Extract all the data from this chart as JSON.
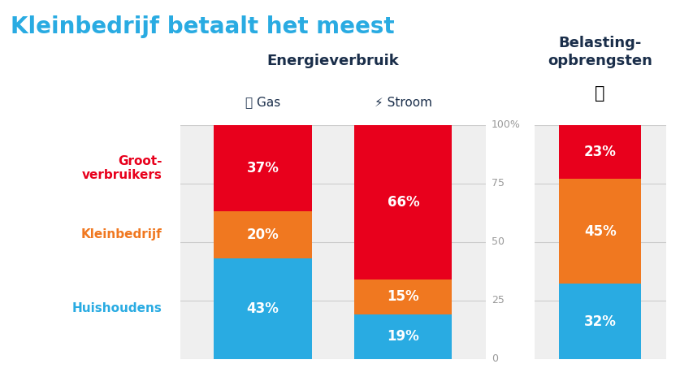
{
  "title": "Kleinbedrijf betaalt het meest",
  "title_color": "#29abe2",
  "title_fontsize": 20,
  "background_color": "#ffffff",
  "panel_color": "#efefef",
  "left_panel_title": "Energieverbruik",
  "right_panel_title": "Belasting-\nopbrengsten",
  "panel_title_color": "#1a2e4a",
  "panel_title_fontsize": 13,
  "col_labels": [
    "🔥 Gas",
    "⚡ Stroom"
  ],
  "col_label_color": "#1a2e4a",
  "row_labels": [
    "Groot-\nverbruikers",
    "Kleinbedrijf",
    "Huishoudens"
  ],
  "row_label_colors": [
    "#e8001c",
    "#f07820",
    "#29abe2"
  ],
  "colors": [
    "#29abe2",
    "#f07820",
    "#e8001c"
  ],
  "gas_values": [
    43,
    20,
    37
  ],
  "stroom_values": [
    19,
    15,
    66
  ],
  "belasting_values": [
    32,
    45,
    23
  ],
  "yticks": [
    0,
    25,
    50,
    75,
    100
  ],
  "ytick_labels": [
    "0",
    "25",
    "50",
    "75",
    "100%"
  ],
  "value_label_fontsize": 12
}
